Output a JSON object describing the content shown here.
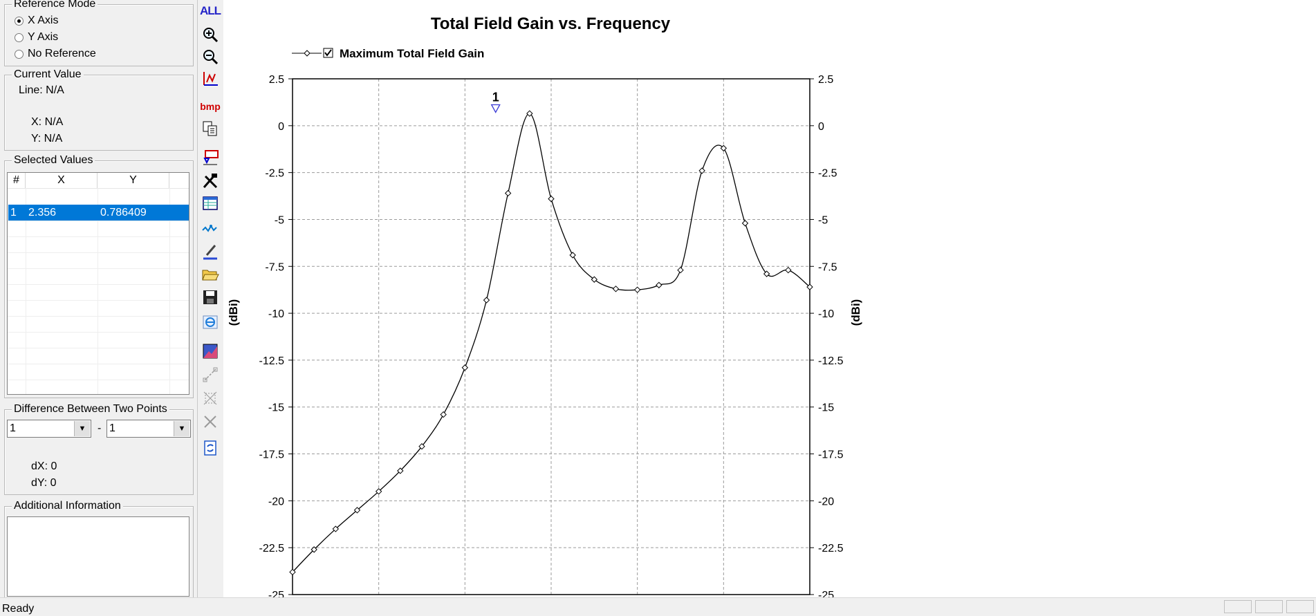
{
  "reference_mode": {
    "title": "Reference Mode",
    "options": [
      {
        "label": "X Axis",
        "selected": true
      },
      {
        "label": "Y Axis",
        "selected": false
      },
      {
        "label": "No Reference",
        "selected": false
      }
    ]
  },
  "current_value": {
    "title": "Current Value",
    "line": "Line: N/A",
    "x": "X: N/A",
    "y": "Y: N/A"
  },
  "selected_values": {
    "title": "Selected Values",
    "columns": [
      "#",
      "X",
      "Y"
    ],
    "rows": [
      {
        "num": "1",
        "x": "2.356",
        "y": "0.786409"
      }
    ]
  },
  "difference": {
    "title": "Difference Between Two Points",
    "first": "1",
    "separator": "-",
    "second": "1",
    "dx": "dX: 0",
    "dy": "dY: 0"
  },
  "additional_info": {
    "title": "Additional Information"
  },
  "toolbar": {
    "all_label": "ALL",
    "bmp_label": "bmp"
  },
  "status_bar": {
    "text": "Ready"
  },
  "colors": {
    "selection": "#0078d7",
    "marker": "#3b3bd6",
    "curve": "#000000"
  },
  "chart_data": {
    "type": "line",
    "title": "Total Field Gain vs. Frequency",
    "legend": [
      {
        "label": "Maximum Total Field Gain",
        "checked": true
      }
    ],
    "legend_position": "top-left",
    "ylabel_left": "(dBi)",
    "ylabel_right": "(dBi)",
    "ylim": [
      -25,
      2.5
    ],
    "yticks": [
      "2.5",
      "0",
      "-2.5",
      "-5",
      "-7.5",
      "-10",
      "-12.5",
      "-15",
      "-17.5",
      "-20",
      "-22.5",
      "-25"
    ],
    "ytick_values": [
      2.5,
      0,
      -2.5,
      -5,
      -7.5,
      -10,
      -12.5,
      -15,
      -17.5,
      -20,
      -22.5,
      -25
    ],
    "xlim": [
      0,
      6
    ],
    "grid": true,
    "series": [
      {
        "name": "Maximum Total Field Gain",
        "x": [
          0,
          0.25,
          0.5,
          0.75,
          1.0,
          1.25,
          1.5,
          1.75,
          2.0,
          2.25,
          2.5,
          2.75,
          3.0,
          3.25,
          3.5,
          3.75,
          4.0,
          4.25,
          4.5,
          4.75,
          5.0,
          5.25,
          5.5,
          5.75,
          6.0
        ],
        "values": [
          -23.8,
          -22.6,
          -21.5,
          -20.5,
          -19.5,
          -18.4,
          -17.1,
          -15.4,
          -12.9,
          -9.3,
          -3.6,
          0.65,
          -3.9,
          -6.9,
          -8.2,
          -8.7,
          -8.75,
          -8.5,
          -7.7,
          -2.4,
          -1.2,
          -5.2,
          -7.9,
          -7.7,
          -8.6
        ]
      }
    ],
    "markers": [
      {
        "label": "1",
        "x": 2.356,
        "y": 0.786409
      }
    ]
  }
}
